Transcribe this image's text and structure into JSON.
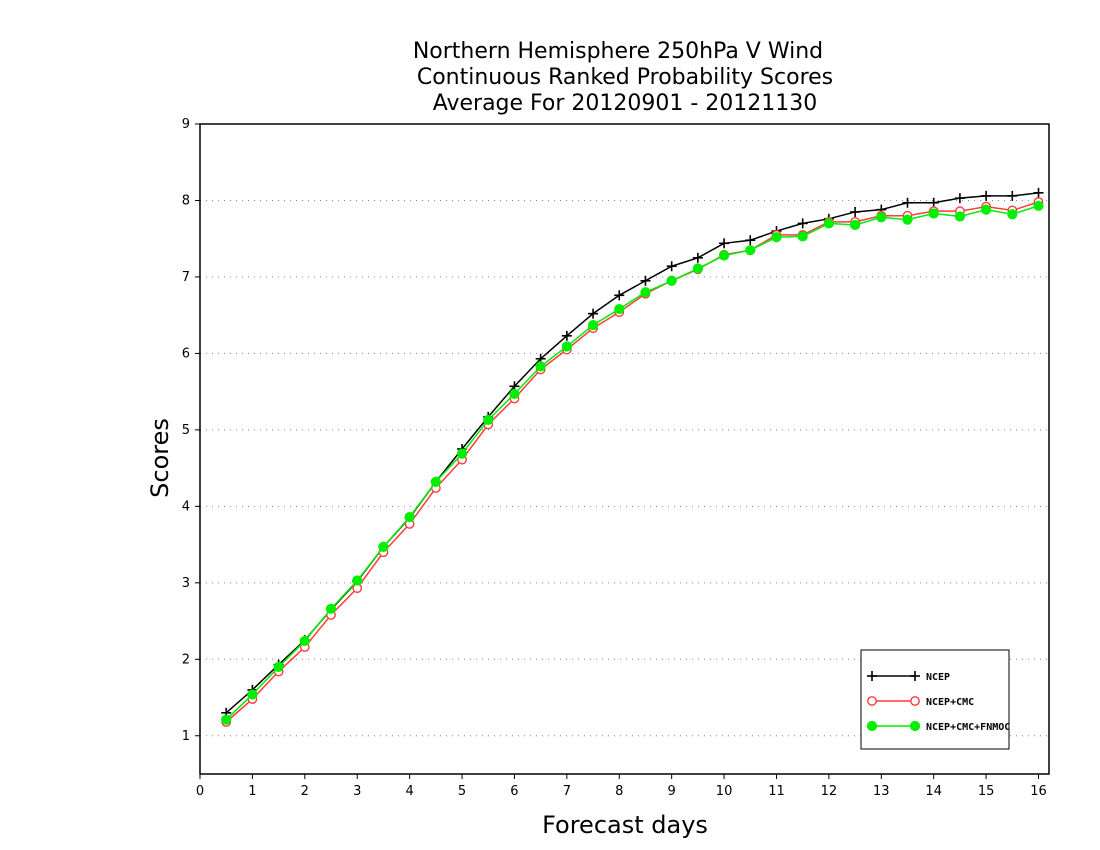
{
  "chart_data": {
    "type": "line",
    "title": [
      "Northern Hemisphere 250hPa V Wind",
      "Continuous Ranked Probability Scores",
      "Average For 20120901 - 20121130"
    ],
    "xlabel": "Forecast days",
    "ylabel": "Scores",
    "xlim": [
      0,
      16.2
    ],
    "ylim": [
      0.5,
      9
    ],
    "xticks": [
      "0",
      "1",
      "2",
      "3",
      "4",
      "5",
      "6",
      "7",
      "8",
      "9",
      "10",
      "11",
      "12",
      "13",
      "14",
      "15",
      "16"
    ],
    "yticks": [
      "1",
      "2",
      "3",
      "4",
      "5",
      "6",
      "7",
      "8",
      "9"
    ],
    "grid": "horizontal dotted",
    "legend_position": "bottom-right",
    "x": [
      0.5,
      1,
      1.5,
      2,
      2.5,
      3,
      3.5,
      4,
      4.5,
      5,
      5.5,
      6,
      6.5,
      7,
      7.5,
      8,
      8.5,
      9,
      9.5,
      10,
      10.5,
      11,
      11.5,
      12,
      12.5,
      13,
      13.5,
      14,
      14.5,
      15,
      15.5,
      16
    ],
    "series": [
      {
        "name": "NCEP",
        "color": "#000000",
        "marker": "plus",
        "values": [
          1.3,
          1.6,
          1.93,
          2.25,
          2.65,
          3.02,
          3.47,
          3.85,
          4.32,
          4.75,
          5.17,
          5.57,
          5.93,
          6.23,
          6.52,
          6.76,
          6.95,
          7.14,
          7.25,
          7.44,
          7.48,
          7.6,
          7.7,
          7.76,
          7.85,
          7.88,
          7.97,
          7.97,
          8.03,
          8.06,
          8.06,
          8.1
        ]
      },
      {
        "name": "NCEP+CMC",
        "color": "#ff3b3b",
        "marker": "open-circle",
        "values": [
          1.18,
          1.48,
          1.84,
          2.16,
          2.58,
          2.93,
          3.4,
          3.77,
          4.24,
          4.61,
          5.07,
          5.41,
          5.79,
          6.05,
          6.33,
          6.54,
          6.78,
          6.95,
          7.1,
          7.29,
          7.35,
          7.55,
          7.55,
          7.72,
          7.72,
          7.8,
          7.8,
          7.86,
          7.86,
          7.92,
          7.87,
          7.98
        ]
      },
      {
        "name": "NCEP+CMC+FNMOC",
        "color": "#00ee00",
        "marker": "filled-circle",
        "values": [
          1.21,
          1.54,
          1.9,
          2.24,
          2.66,
          3.03,
          3.47,
          3.86,
          4.32,
          4.69,
          5.13,
          5.47,
          5.83,
          6.09,
          6.37,
          6.58,
          6.8,
          6.95,
          7.11,
          7.28,
          7.35,
          7.52,
          7.53,
          7.7,
          7.68,
          7.78,
          7.75,
          7.83,
          7.79,
          7.88,
          7.82,
          7.93
        ]
      }
    ]
  }
}
